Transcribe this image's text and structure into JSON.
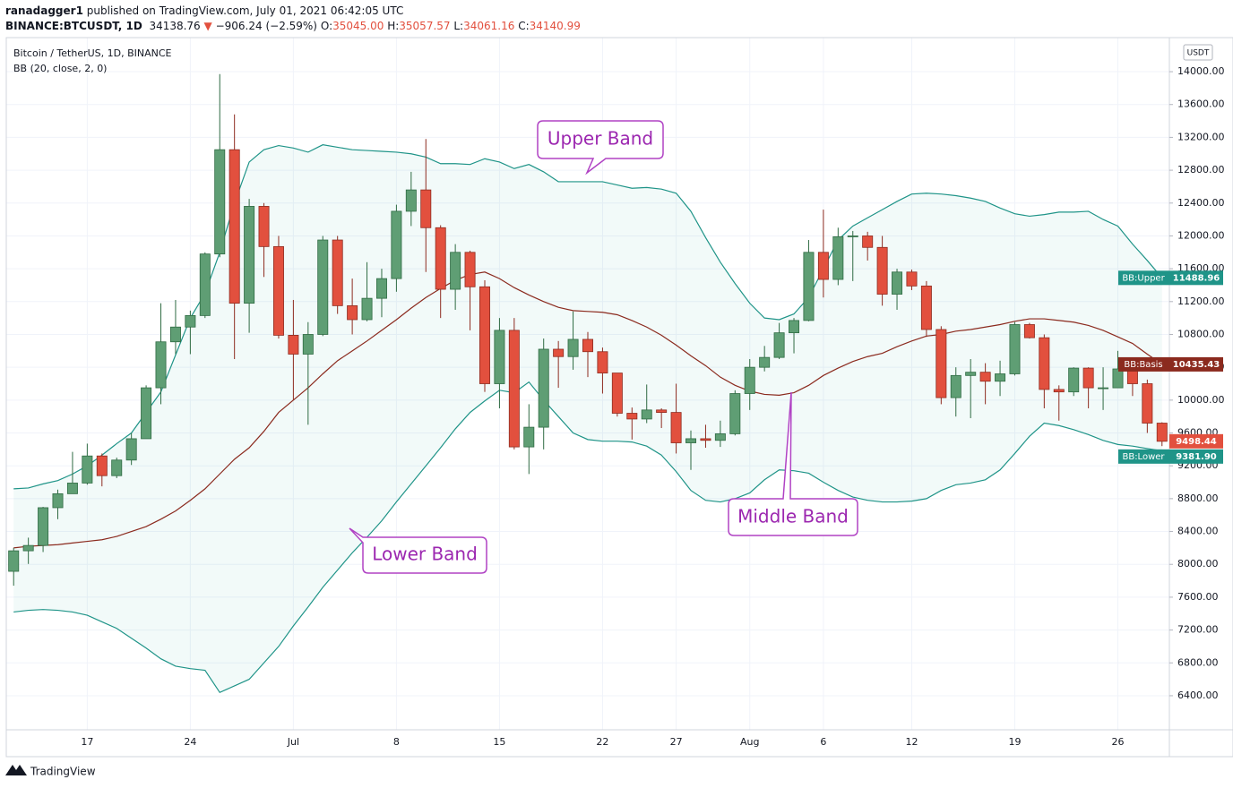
{
  "header": {
    "author": "ranadagger1",
    "published": "published on TradingView.com, July 01, 2021 06:42:05 UTC",
    "symbol": "BINANCE:BTCUSDT, 1D",
    "price": "34138.76",
    "change": "−906.24 (−2.59%)",
    "ohlc": [
      {
        "label": "O:",
        "value": "35045.00"
      },
      {
        "label": "H:",
        "value": "35057.57"
      },
      {
        "label": "L:",
        "value": "34061.16"
      },
      {
        "label": "C:",
        "value": "34140.99"
      }
    ]
  },
  "footer": {
    "brand": "TradingView"
  },
  "chart_data": {
    "type": "candlestick",
    "title": "Bitcoin / TetherUS, 1D, BINANCE",
    "indicator": "BB (20, close, 2, 0)",
    "currency": "USDT",
    "categories": [
      null,
      null,
      null,
      null,
      null,
      "17",
      null,
      null,
      null,
      null,
      null,
      null,
      "24",
      null,
      null,
      null,
      null,
      null,
      null,
      "Jul",
      null,
      null,
      null,
      null,
      null,
      null,
      "8",
      null,
      null,
      null,
      null,
      null,
      null,
      "15",
      null,
      null,
      null,
      null,
      null,
      null,
      "22",
      null,
      null,
      null,
      null,
      "27",
      null,
      null,
      null,
      null,
      "Aug",
      null,
      null,
      null,
      null,
      "6",
      null,
      null,
      null,
      null,
      null,
      "12",
      null,
      null,
      null,
      null,
      null,
      null,
      "19",
      null,
      null,
      null,
      null,
      null,
      null,
      "26",
      null,
      null,
      null
    ],
    "open": [
      7915,
      8165,
      8230,
      8690,
      8860,
      8990,
      9320,
      9080,
      9270,
      9530,
      10150,
      10710,
      10890,
      11030,
      11780,
      13050,
      11180,
      12360,
      11870,
      10790,
      10560,
      10800,
      11950,
      11150,
      10980,
      11240,
      11480,
      12300,
      12560,
      12100,
      11350,
      11800,
      11380,
      10200,
      10850,
      9430,
      9670,
      10620,
      10530,
      10740,
      10590,
      10330,
      9840,
      9770,
      9880,
      9850,
      9480,
      9530,
      9510,
      9590,
      10080,
      10400,
      10520,
      10820,
      10970,
      11800,
      11470,
      11990,
      12000,
      11860,
      11290,
      11560,
      11390,
      10860,
      10030,
      10300,
      10340,
      10230,
      10320,
      10920,
      10760,
      10130,
      10100,
      10390,
      10150,
      10150,
      10380,
      10200,
      9720
    ],
    "high": [
      8200,
      8325,
      8700,
      8910,
      9370,
      9470,
      9350,
      9300,
      9600,
      10180,
      11180,
      11220,
      11090,
      11800,
      13970,
      13480,
      12450,
      12400,
      12000,
      11220,
      10950,
      12000,
      12000,
      11480,
      11680,
      11600,
      12380,
      12780,
      13180,
      12130,
      11900,
      11820,
      11460,
      11000,
      11000,
      9950,
      10750,
      10720,
      11080,
      10830,
      10640,
      10330,
      9910,
      10190,
      9900,
      10200,
      9630,
      9700,
      9750,
      10120,
      10500,
      10660,
      10940,
      11000,
      11950,
      12320,
      12100,
      12060,
      12050,
      12000,
      11600,
      11590,
      11450,
      10900,
      10400,
      10500,
      10450,
      10480,
      10950,
      10940,
      10800,
      10180,
      10400,
      10400,
      10400,
      10600,
      10410,
      10250,
      9730
    ],
    "low": [
      7740,
      8005,
      8150,
      8550,
      8860,
      8970,
      8950,
      9050,
      9210,
      9530,
      9950,
      10560,
      10560,
      11000,
      11740,
      10500,
      10820,
      11500,
      10750,
      10000,
      9700,
      10780,
      11050,
      10800,
      10960,
      11010,
      11320,
      12120,
      11560,
      11000,
      11100,
      10850,
      10100,
      9900,
      9400,
      9100,
      9400,
      10150,
      10370,
      10280,
      10080,
      9800,
      9520,
      9720,
      9660,
      9350,
      9150,
      9420,
      9430,
      9570,
      9880,
      10350,
      10500,
      10570,
      10960,
      11250,
      11400,
      11450,
      11700,
      11150,
      11100,
      11340,
      10770,
      9950,
      9800,
      9780,
      9950,
      10050,
      10300,
      10750,
      9900,
      9750,
      10050,
      9900,
      9880,
      10150,
      10050,
      9600,
      9440
    ],
    "close": [
      8165,
      8230,
      8690,
      8860,
      8990,
      9320,
      9080,
      9270,
      9530,
      10150,
      10710,
      10890,
      11030,
      11780,
      13050,
      11180,
      12360,
      11870,
      10790,
      10560,
      10800,
      11950,
      11150,
      10980,
      11240,
      11480,
      12300,
      12560,
      12100,
      11350,
      11800,
      11380,
      10200,
      10850,
      9430,
      9670,
      10620,
      10530,
      10740,
      10590,
      10330,
      9840,
      9770,
      9880,
      9850,
      9480,
      9530,
      9510,
      9590,
      10080,
      10400,
      10520,
      10820,
      10970,
      11800,
      11470,
      11990,
      12000,
      11860,
      11290,
      11560,
      11390,
      10860,
      10030,
      10300,
      10340,
      10230,
      10320,
      10920,
      10760,
      10130,
      10100,
      10390,
      10150,
      10150,
      10380,
      10200,
      9720,
      9498.44
    ],
    "up_color": "#5f9e74",
    "down_color": "#e2503e",
    "up_border": "#2f6b43",
    "down_border": "#8e2c20",
    "series": [
      {
        "name": "BB:Upper",
        "color": "#1f9488",
        "values": [
          8920,
          8930,
          8980,
          9020,
          9100,
          9200,
          9330,
          9470,
          9600,
          9850,
          10100,
          10550,
          11000,
          11300,
          11800,
          12400,
          12900,
          13050,
          13100,
          13070,
          13020,
          13110,
          13080,
          13050,
          13040,
          13030,
          13020,
          13000,
          12960,
          12880,
          12880,
          12870,
          12940,
          12900,
          12820,
          12870,
          12780,
          12660,
          12660,
          12660,
          12660,
          12620,
          12580,
          12590,
          12570,
          12520,
          12300,
          11980,
          11680,
          11420,
          11180,
          11000,
          10980,
          11050,
          11250,
          11600,
          11950,
          12120,
          12220,
          12320,
          12420,
          12510,
          12520,
          12510,
          12490,
          12460,
          12420,
          12340,
          12270,
          12240,
          12260,
          12290,
          12290,
          12300,
          12200,
          12120,
          11900,
          11700,
          11488.96
        ]
      },
      {
        "name": "BB:Basis",
        "color": "#8b2a1e",
        "values": [
          8200,
          8220,
          8230,
          8240,
          8260,
          8280,
          8300,
          8340,
          8400,
          8460,
          8550,
          8650,
          8780,
          8920,
          9100,
          9280,
          9420,
          9620,
          9850,
          10000,
          10150,
          10320,
          10480,
          10600,
          10720,
          10850,
          10980,
          11120,
          11250,
          11360,
          11460,
          11530,
          11560,
          11480,
          11370,
          11280,
          11200,
          11130,
          11090,
          11080,
          11070,
          11040,
          10970,
          10890,
          10790,
          10670,
          10540,
          10420,
          10280,
          10180,
          10110,
          10070,
          10060,
          10090,
          10180,
          10300,
          10390,
          10470,
          10530,
          10570,
          10650,
          10720,
          10780,
          10800,
          10840,
          10860,
          10890,
          10920,
          10960,
          10990,
          10990,
          10970,
          10950,
          10910,
          10850,
          10770,
          10690,
          10560,
          10435.43
        ]
      },
      {
        "name": "BB:Lower",
        "color": "#1f9488",
        "last_label": "9381.90",
        "values": [
          7420,
          7440,
          7450,
          7440,
          7420,
          7380,
          7300,
          7220,
          7100,
          6980,
          6850,
          6760,
          6730,
          6710,
          6440,
          6520,
          6600,
          6800,
          7000,
          7250,
          7480,
          7720,
          7930,
          8140,
          8330,
          8530,
          8760,
          8980,
          9200,
          9420,
          9650,
          9850,
          9990,
          10120,
          10090,
          10220,
          10000,
          9800,
          9600,
          9520,
          9500,
          9500,
          9490,
          9440,
          9330,
          9130,
          8900,
          8780,
          8760,
          8800,
          8870,
          9030,
          9150,
          9140,
          9110,
          9000,
          8900,
          8820,
          8780,
          8760,
          8760,
          8770,
          8800,
          8900,
          8970,
          8990,
          9030,
          9150,
          9350,
          9560,
          9720,
          9690,
          9640,
          9580,
          9510,
          9460,
          9440,
          9410,
          9381.9
        ]
      }
    ],
    "band_fill": "#26a69a",
    "ylim": [
      5985,
      14415
    ],
    "yticks": [
      {
        "value": 6400,
        "label": "6400.00"
      },
      {
        "value": 6800,
        "label": "6800.00"
      },
      {
        "value": 7200,
        "label": "7200.00"
      },
      {
        "value": 7600,
        "label": "7600.00"
      },
      {
        "value": 8000,
        "label": "8000.00"
      },
      {
        "value": 8400,
        "label": "8400.00"
      },
      {
        "value": 8800,
        "label": "8800.00"
      },
      {
        "value": 9200,
        "label": "9200.00"
      },
      {
        "value": 9600,
        "label": "9600.00"
      },
      {
        "value": 10000,
        "label": "10000.00"
      },
      {
        "value": 10400,
        "label": "10400.00"
      },
      {
        "value": 10800,
        "label": "10800.00"
      },
      {
        "value": 11200,
        "label": "11200.00"
      },
      {
        "value": 11600,
        "label": "11600.00"
      },
      {
        "value": 12000,
        "label": "12000.00"
      },
      {
        "value": 12400,
        "label": "12400.00"
      },
      {
        "value": 12800,
        "label": "12800.00"
      },
      {
        "value": 13200,
        "label": "13200.00"
      },
      {
        "value": 13600,
        "label": "13600.00"
      },
      {
        "value": 14000,
        "label": "14000.00"
      }
    ],
    "grid": true,
    "annotations": [
      {
        "text": "Upper Band"
      },
      {
        "text": "Lower Band"
      },
      {
        "text": "Middle Band"
      }
    ]
  }
}
